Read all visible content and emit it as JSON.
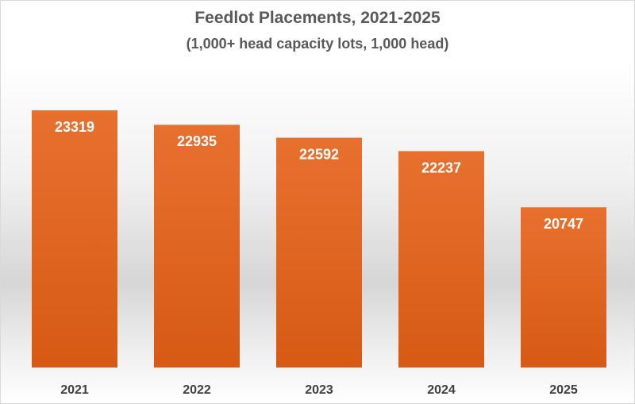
{
  "chart_data": {
    "type": "bar",
    "title": "Feedlot Placements, 2021-2025",
    "subtitle": "(1,000+ head capacity lots, 1,000 head)",
    "categories": [
      "2021",
      "2022",
      "2023",
      "2024",
      "2025"
    ],
    "values": [
      23319,
      22935,
      22592,
      22237,
      20747
    ],
    "xlabel": "",
    "ylabel": "",
    "ylim": [
      16500,
      24000
    ],
    "grid": false,
    "legend": "none",
    "data_labels": true,
    "bar_color": "#e8702f",
    "bar_color_dark": "#d65a14",
    "label_color": "#ffffff",
    "tick_color": "#404040"
  }
}
